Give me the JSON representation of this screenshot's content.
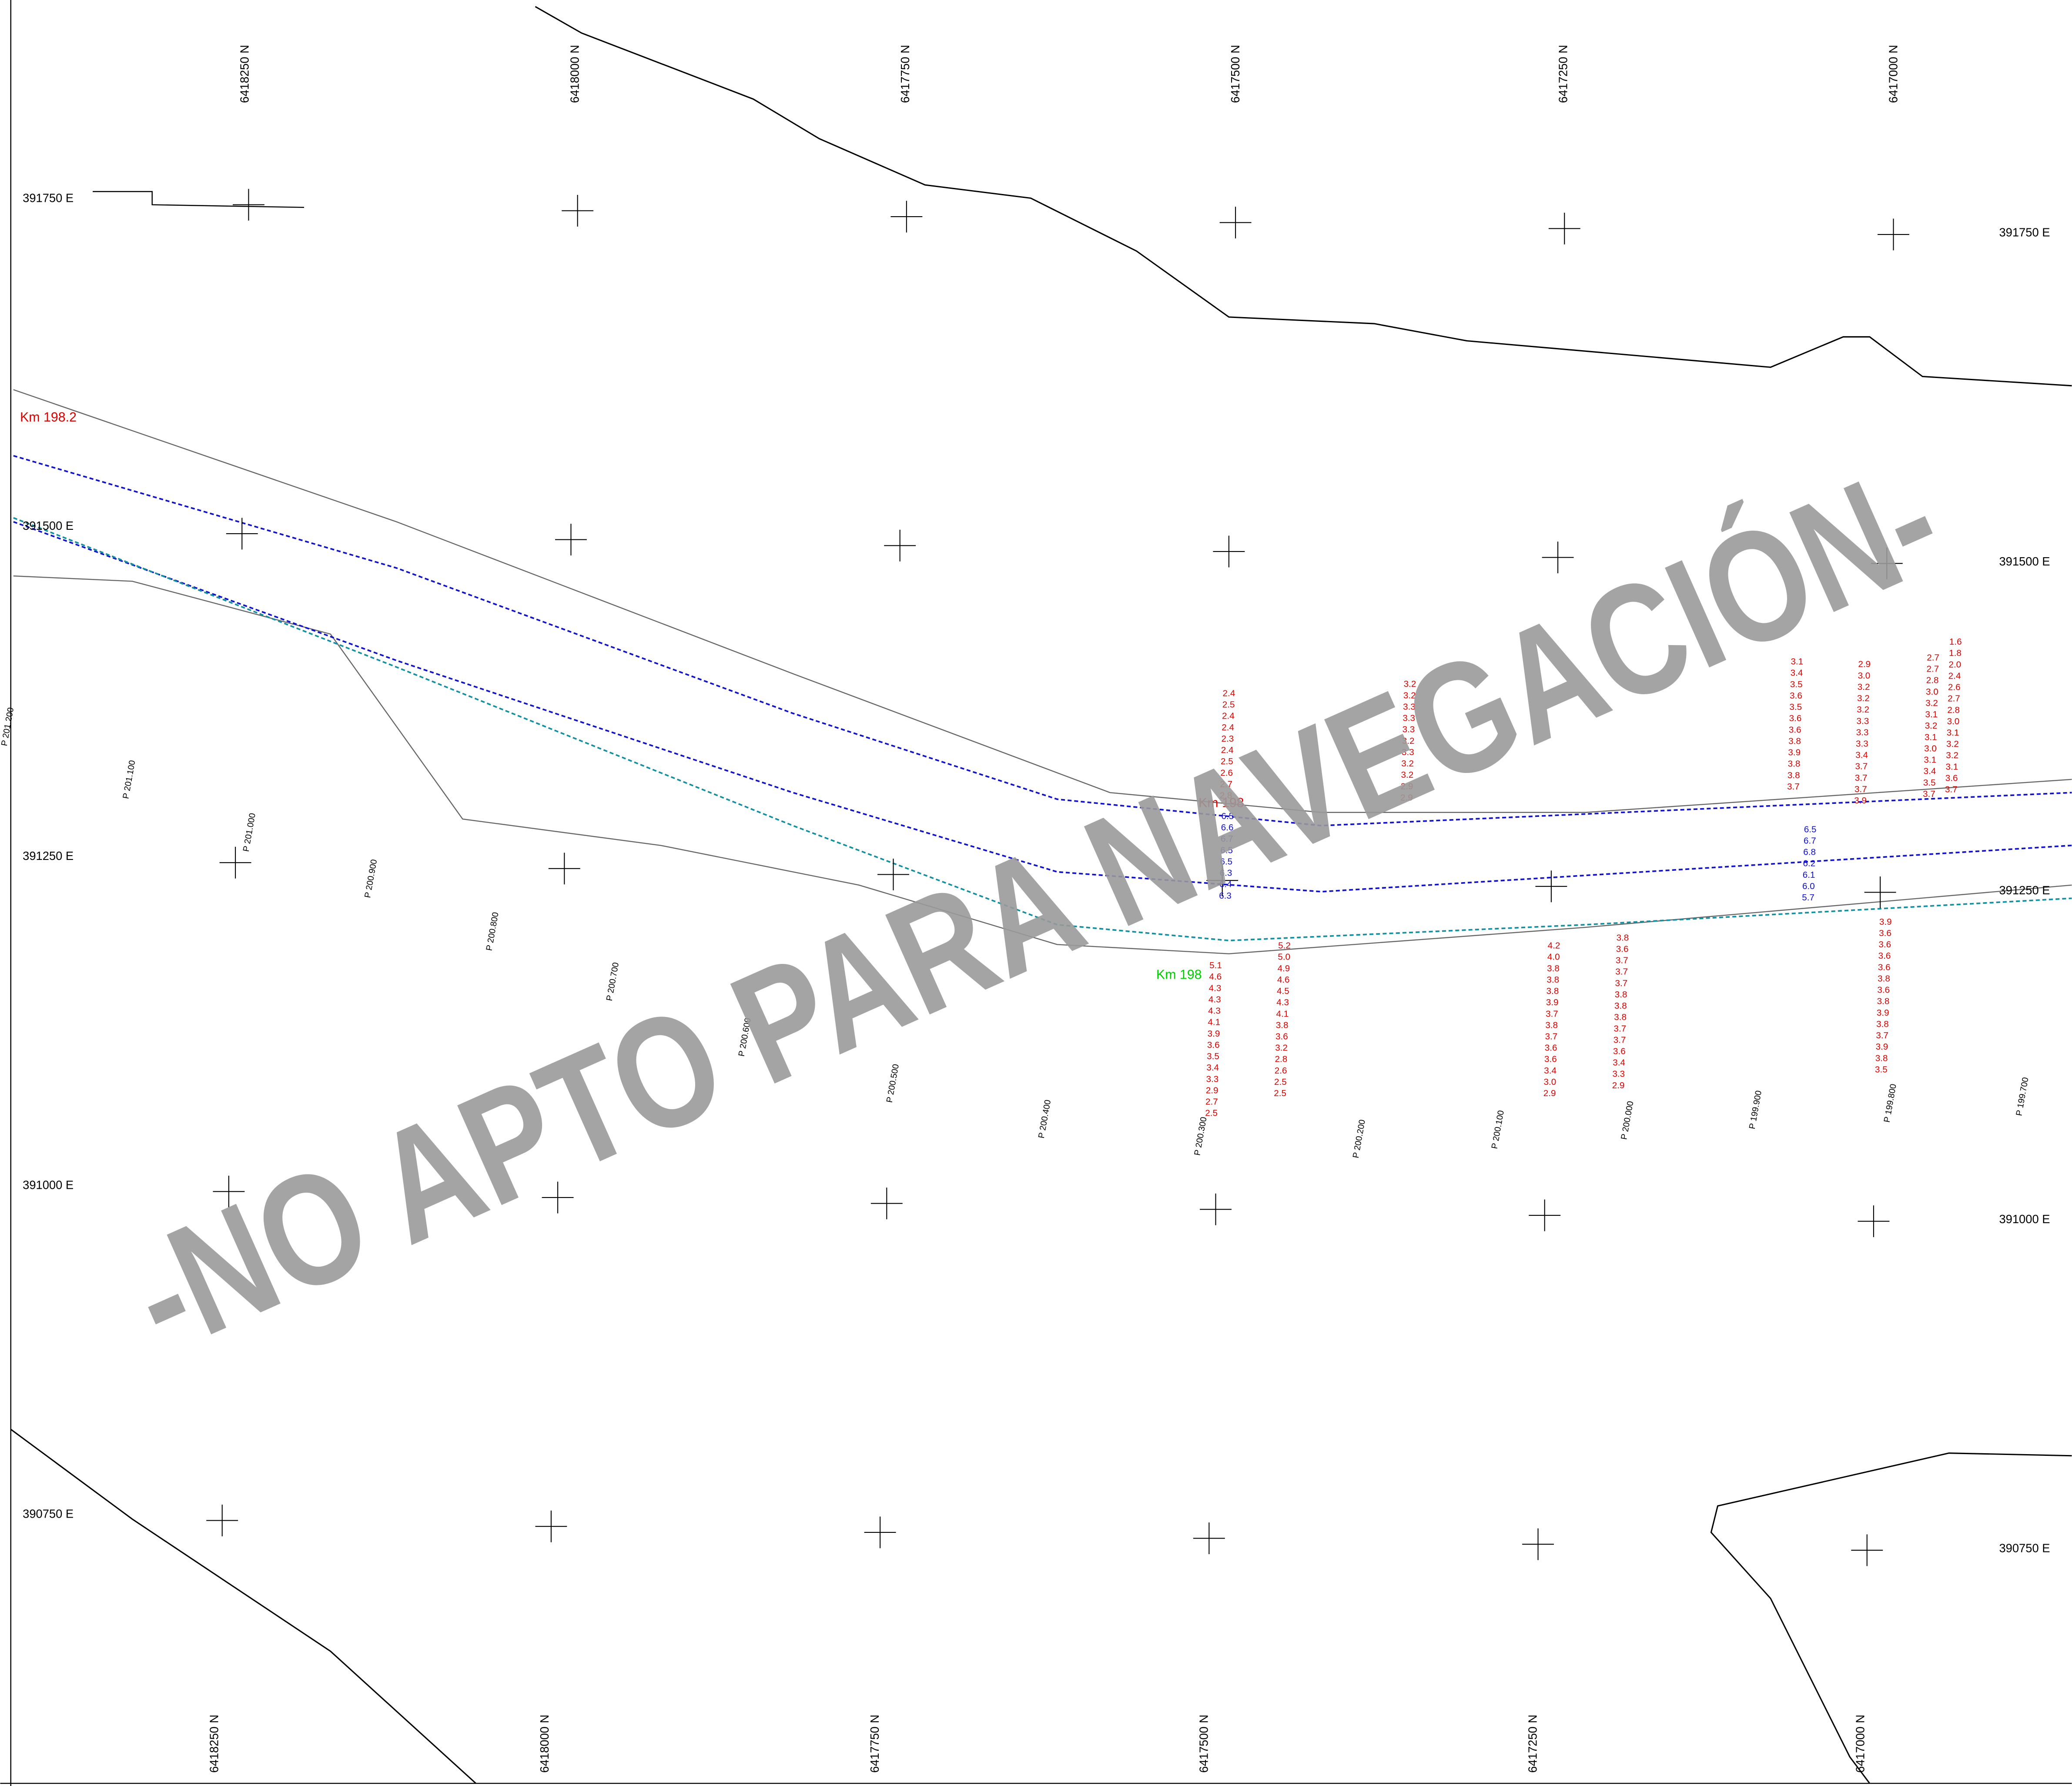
{
  "grid_labels": {
    "top": [
      "6418250 N",
      "6418000 N",
      "6417750 N",
      "6417500 N",
      "6417250 N",
      "6417000 N"
    ],
    "bottom": [
      "6418250 N",
      "6418000 N",
      "6417750 N",
      "6417500 N",
      "6417250 N",
      "6417000 N"
    ],
    "left": [
      "391750 E",
      "391500 E",
      "391250 E",
      "391000 E",
      "390750 E"
    ],
    "right": [
      "391750 E",
      "391500 E",
      "391250 E",
      "391000 E",
      "390750 E"
    ]
  },
  "km_markers": [
    "Km 198.2",
    "Km 198",
    "Km 198"
  ],
  "profiles": [
    "P 201.200",
    "P 201.100",
    "P 201.000",
    "P 200.900",
    "P 200.800",
    "P 200.700",
    "P 200.600",
    "P 200.500",
    "P 200.400",
    "P 200.300",
    "P 200.200",
    "P 200.100",
    "P 200.000",
    "P 199.900",
    "P 199.800",
    "P 199.700"
  ],
  "soundings": [
    {
      "color": "#e00000",
      "values": [
        "1.6",
        "1.8",
        "2.0",
        "2.4",
        "2.6",
        "2.7",
        "2.8",
        "3.0",
        "3.1",
        "3.2",
        "3.2",
        "3.1",
        "3.6",
        "3.7"
      ]
    },
    {
      "color": "#e00000",
      "values": [
        "2.7",
        "2.7",
        "2.8",
        "3.0",
        "3.2",
        "3.1",
        "3.2",
        "3.1",
        "3.0",
        "3.1",
        "3.4",
        "3.5",
        "3.7"
      ]
    },
    {
      "color": "#e00000",
      "values": [
        "2.9",
        "3.0",
        "3.2",
        "3.2",
        "3.2",
        "3.3",
        "3.3",
        "3.3",
        "3.4",
        "3.7",
        "3.7",
        "3.7",
        "3.9"
      ]
    },
    {
      "color": "#e00000",
      "values": [
        "3.1",
        "3.4",
        "3.5",
        "3.6",
        "3.5",
        "3.6",
        "3.6",
        "3.8",
        "3.9",
        "3.8",
        "3.8",
        "3.7"
      ]
    },
    {
      "color": "#e00000",
      "values": [
        "3.9",
        "3.6",
        "3.6",
        "3.6",
        "3.6",
        "3.8",
        "3.6",
        "3.8",
        "3.9",
        "3.8",
        "3.7",
        "3.9",
        "3.8",
        "3.5"
      ]
    },
    {
      "color": "#1010d0",
      "values": [
        "6.5",
        "6.7",
        "6.8",
        "6.2",
        "6.1",
        "6.0",
        "5.7"
      ]
    },
    {
      "color": "#e00000",
      "values": [
        "2.4",
        "2.5",
        "2.4",
        "2.4",
        "2.3",
        "2.4",
        "2.5",
        "2.6",
        "2.7",
        "2.8"
      ]
    },
    {
      "color": "#1010d0",
      "values": [
        "6.5",
        "6.6",
        "6.7",
        "6.5",
        "6.5",
        "6.3",
        "6.4",
        "6.3"
      ]
    },
    {
      "color": "#e00000",
      "values": [
        "5.1",
        "4.6",
        "4.3",
        "4.3",
        "4.3",
        "4.1",
        "3.9",
        "3.6",
        "3.5",
        "3.4",
        "3.3",
        "2.9",
        "2.7",
        "2.5"
      ]
    },
    {
      "color": "#e00000",
      "values": [
        "3.8",
        "3.6",
        "3.7",
        "3.7",
        "3.7",
        "3.8",
        "3.8",
        "3.8",
        "3.7",
        "3.7",
        "3.6",
        "3.4",
        "3.3",
        "2.9"
      ]
    },
    {
      "color": "#e00000",
      "values": [
        "4.2",
        "4.0",
        "3.8",
        "3.8",
        "3.8",
        "3.9",
        "3.7",
        "3.8",
        "3.7",
        "3.6",
        "3.6",
        "3.4",
        "3.0",
        "2.9"
      ]
    },
    {
      "color": "#e00000",
      "values": [
        "5.2",
        "5.0",
        "4.9",
        "4.6",
        "4.5",
        "4.3",
        "4.1",
        "3.8",
        "3.6",
        "3.2",
        "2.8",
        "2.6",
        "2.5",
        "2.5"
      ]
    },
    {
      "color": "#e00000",
      "values": [
        "3.2",
        "3.2",
        "3.3",
        "3.3",
        "3.3",
        "3.2",
        "3.3",
        "3.2",
        "3.2",
        "2.9",
        "2.9"
      ]
    }
  ],
  "watermark": "-NO APTO PARA NAVEGACIÓN-"
}
